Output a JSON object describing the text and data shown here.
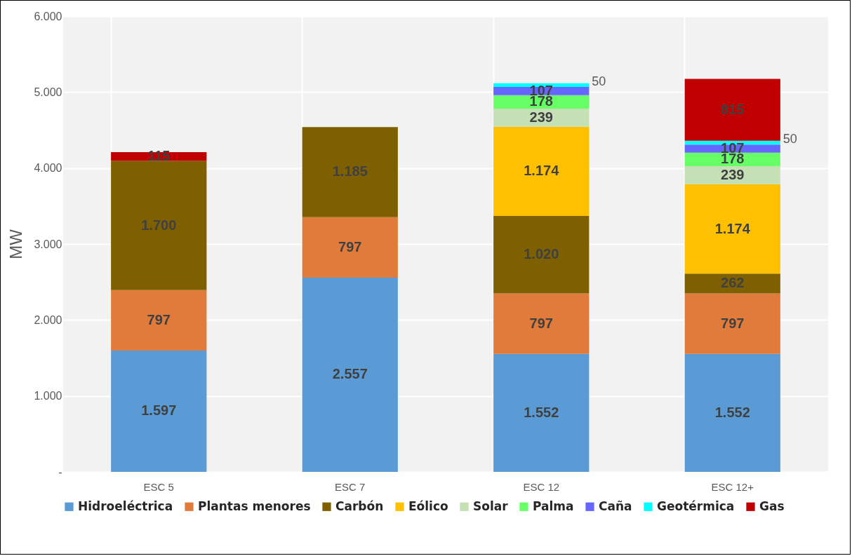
{
  "chart_data": {
    "type": "bar",
    "stacked": true,
    "ylabel": "MW",
    "categories": [
      "ESC 5",
      "ESC 7",
      "ESC 12",
      "ESC 12+"
    ],
    "series": [
      {
        "name": "Hidroeléctrica",
        "color": "#5b9bd5",
        "values": [
          1597,
          2557,
          1552,
          1552
        ],
        "value_labels": [
          "1.597",
          "2.557",
          "1.552",
          "1.552"
        ]
      },
      {
        "name": "Plantas menores",
        "color": "#e07b3c",
        "values": [
          797,
          797,
          797,
          797
        ],
        "value_labels": [
          "797",
          "797",
          "797",
          "797"
        ]
      },
      {
        "name": "Carbón",
        "color": "#7f6000",
        "values": [
          1700,
          1185,
          1020,
          262
        ],
        "value_labels": [
          "1.700",
          "1.185",
          "1.020",
          "262"
        ]
      },
      {
        "name": "Eólico",
        "color": "#ffc000",
        "values": [
          null,
          null,
          1174,
          1174
        ],
        "value_labels": [
          null,
          null,
          "1.174",
          "1.174"
        ]
      },
      {
        "name": "Solar",
        "color": "#c5e0b4",
        "values": [
          null,
          null,
          239,
          239
        ],
        "value_labels": [
          null,
          null,
          "239",
          "239"
        ]
      },
      {
        "name": "Palma",
        "color": "#66ff66",
        "values": [
          null,
          null,
          178,
          178
        ],
        "value_labels": [
          null,
          null,
          "178",
          "178"
        ]
      },
      {
        "name": "Caña",
        "color": "#6666ff",
        "values": [
          null,
          null,
          107,
          107
        ],
        "value_labels": [
          null,
          null,
          "107",
          "107"
        ]
      },
      {
        "name": "Geotérmica",
        "color": "#00ffff",
        "values": [
          null,
          null,
          50,
          50
        ],
        "value_labels": [
          null,
          null,
          "50",
          "50"
        ]
      },
      {
        "name": "Gas",
        "color": "#c00000",
        "values": [
          115,
          null,
          null,
          815
        ],
        "value_labels": [
          "115",
          null,
          null,
          "815"
        ]
      }
    ],
    "ylim": [
      0,
      6000
    ],
    "yticks": [
      {
        "value": 0,
        "label": "-"
      },
      {
        "value": 1000,
        "label": "1.000"
      },
      {
        "value": 2000,
        "label": "2.000"
      },
      {
        "value": 3000,
        "label": "3.000"
      },
      {
        "value": 4000,
        "label": "4.000"
      },
      {
        "value": 5000,
        "label": "5.000"
      },
      {
        "value": 6000,
        "label": "6.000"
      }
    ],
    "grid": true,
    "legend": "bottom"
  }
}
